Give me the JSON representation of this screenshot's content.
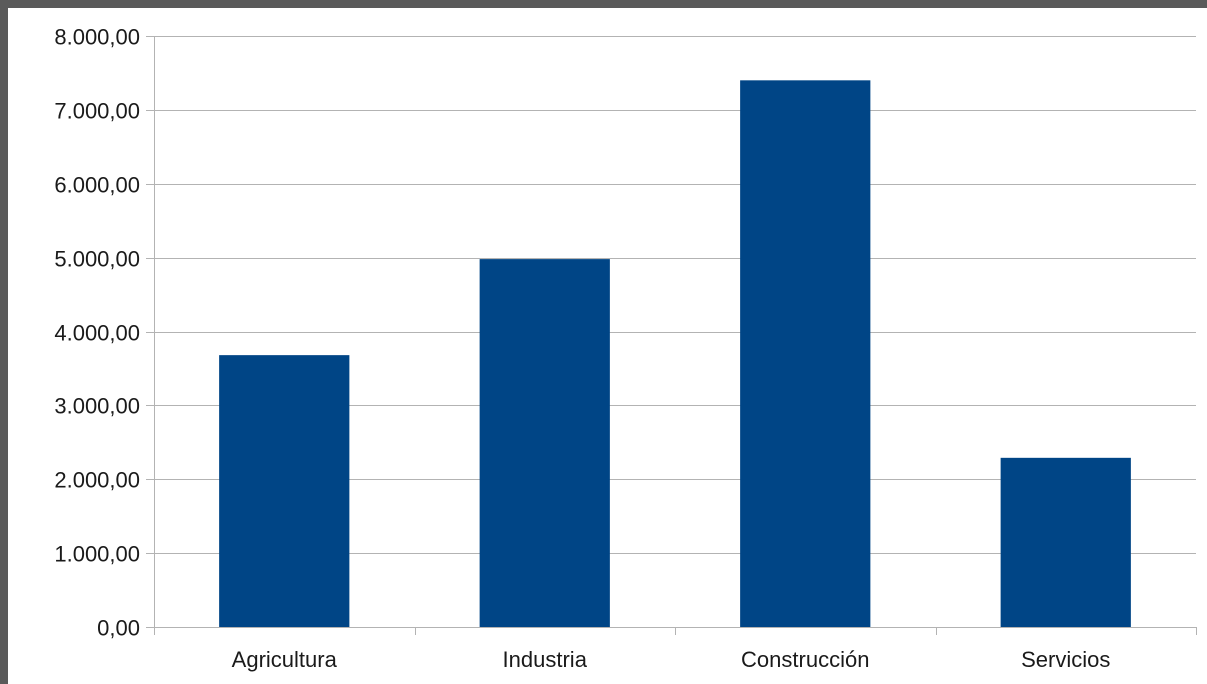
{
  "chart_data": {
    "type": "bar",
    "categories": [
      "Agricultura",
      "Industria",
      "Construcción",
      "Servicios"
    ],
    "values": [
      3680,
      4980,
      7400,
      2290
    ],
    "ylim": [
      0,
      8000
    ],
    "ytick_step": 1000,
    "ytick_labels": [
      "0,00",
      "1.000,00",
      "2.000,00",
      "3.000,00",
      "4.000,00",
      "5.000,00",
      "6.000,00",
      "7.000,00",
      "8.000,00"
    ],
    "grid": true,
    "legend": "none",
    "colors": {
      "bar": "#004586",
      "grid": "#b3b3b3",
      "axis": "#b3b3b3",
      "border": "#5a5a5a",
      "background": "#ffffff"
    }
  }
}
